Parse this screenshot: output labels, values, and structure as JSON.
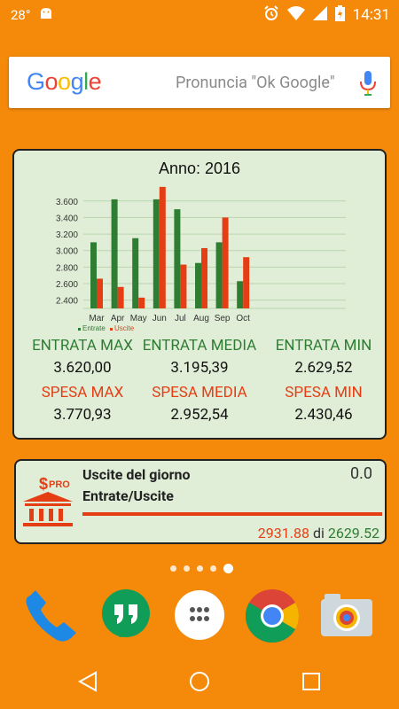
{
  "status_bar": {
    "temperature": "28°",
    "time": "14:31"
  },
  "google_search": {
    "logo_letters": [
      "G",
      "o",
      "o",
      "g",
      "l",
      "e"
    ],
    "hint": "Pronuncia \"Ok Google\""
  },
  "finance_widget": {
    "stats": {
      "entrata_max_label": "ENTRATA MAX",
      "entrata_max_value": "3.620,00",
      "entrata_media_label": "ENTRATA MEDIA",
      "entrata_media_value": "3.195,39",
      "entrata_min_label": "ENTRATA MIN",
      "entrata_min_value": "2.629,52",
      "spesa_max_label": "SPESA MAX",
      "spesa_max_value": "3.770,93",
      "spesa_media_label": "SPESA MEDIA",
      "spesa_media_value": "2.952,54",
      "spesa_min_label": "SPESA MIN",
      "spesa_min_value": "2.430,46"
    }
  },
  "chart_data": {
    "type": "bar",
    "title": "Anno: 2016",
    "categories": [
      "Mar",
      "Apr",
      "May",
      "Jun",
      "Jul",
      "Aug",
      "Sep",
      "Oct"
    ],
    "series": [
      {
        "name": "Entrate",
        "color": "#2E7D32",
        "values": [
          3100,
          3620,
          3150,
          3620,
          3500,
          2850,
          3100,
          2629.52
        ]
      },
      {
        "name": "Uscite",
        "color": "#E53E14",
        "values": [
          2660,
          2560,
          2430.46,
          3770.93,
          2830,
          3030,
          3400,
          2920
        ]
      }
    ],
    "yticks": [
      "2.400",
      "2.600",
      "2.800",
      "3.000",
      "3.200",
      "3.400",
      "3.600"
    ],
    "ylim": [
      2300,
      3780
    ],
    "grid": true,
    "legend": "bottom-left"
  },
  "daily_widget": {
    "title": "Uscite del giorno",
    "subtitle": "Entrate/Uscite",
    "value": "0.0",
    "spent": "2931.88",
    "separator": "di",
    "total": "2629.52",
    "icon_badge": "$PRO"
  },
  "page_indicator": {
    "count": 5,
    "active": 4
  },
  "colors": {
    "wallpaper": "#F58A0A",
    "widget_bg": "#E0EED8",
    "income": "#2E7D32",
    "expense": "#E53E14"
  }
}
